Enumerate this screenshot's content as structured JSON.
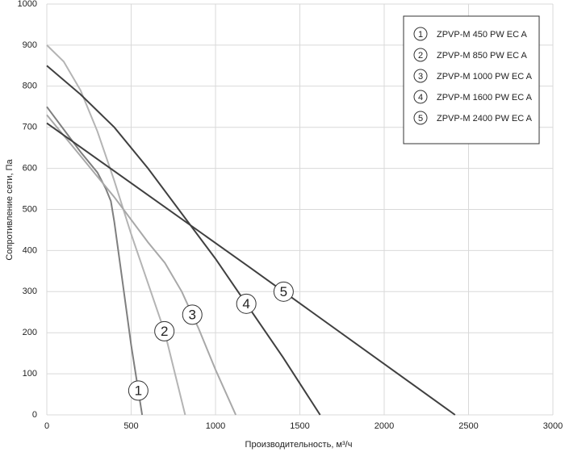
{
  "chart_data": {
    "type": "line",
    "xlabel": "Производительность,  м³/ч",
    "ylabel": "Сопротивление сети, Па",
    "xlim": [
      0,
      3000
    ],
    "xticks": [
      0,
      500,
      1000,
      1500,
      2000,
      2500,
      3000
    ],
    "ylim": [
      0,
      1000
    ],
    "yticks": [
      0,
      100,
      200,
      300,
      400,
      500,
      600,
      700,
      800,
      900,
      1000
    ],
    "grid": true,
    "legend": "upper right",
    "series": [
      {
        "name": "ZPVP-M 450 PW EC A",
        "label": "1",
        "color": "#7f7f7f",
        "x": [
          0,
          200,
          300,
          350,
          380,
          400,
          450,
          500,
          565
        ],
        "values": [
          750,
          640,
          590,
          550,
          520,
          470,
          320,
          170,
          0
        ]
      },
      {
        "name": "ZPVP-M 850 PW EC A",
        "label": "2",
        "color": "#b4b4b4",
        "x": [
          0,
          100,
          200,
          300,
          400,
          500,
          600,
          700,
          820
        ],
        "values": [
          900,
          860,
          790,
          690,
          570,
          440,
          320,
          200,
          0
        ]
      },
      {
        "name": "ZPVP-M 1000 PW EC A",
        "label": "3",
        "color": "#a8a8a8",
        "x": [
          0,
          200,
          400,
          600,
          700,
          800,
          900,
          1000,
          1120
        ],
        "values": [
          730,
          630,
          530,
          420,
          370,
          300,
          210,
          110,
          0
        ]
      },
      {
        "name": "ZPVP-M 1600 PW EC A",
        "label": "4",
        "color": "#404040",
        "x": [
          0,
          200,
          400,
          600,
          800,
          1000,
          1200,
          1400,
          1620
        ],
        "values": [
          850,
          780,
          700,
          600,
          490,
          380,
          260,
          140,
          0
        ]
      },
      {
        "name": "ZPVP-M 2400 PW EC A",
        "label": "5",
        "color": "#404040",
        "x": [
          0,
          1200,
          2420
        ],
        "values": [
          710,
          360,
          0
        ]
      }
    ]
  }
}
